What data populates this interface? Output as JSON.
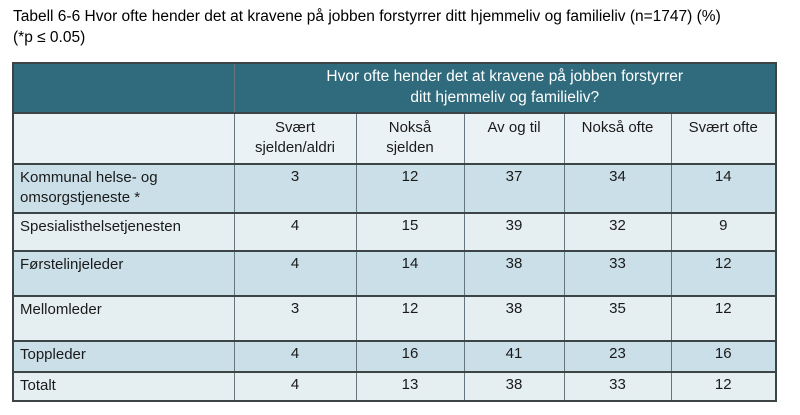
{
  "page": {
    "caption": "Tabell 6-6 Hvor ofte hender det at kravene på jobben forstyrrer ditt hjemmeliv og familieliv (n=1747) (%)\n(*p ≤ 0.05)"
  },
  "table": {
    "question": "Hvor ofte hender det at kravene på jobben forstyrrer\nditt hjemmeliv og familieliv?",
    "column_headers": [
      "Svært\nsjelden/aldri",
      "Nokså\nsjelden",
      "Av og til",
      "Nokså ofte",
      "Svært ofte"
    ],
    "rows": [
      {
        "label": "Kommunal helse- og omsorgstjeneste *",
        "values": [
          "3",
          "12",
          "37",
          "34",
          "14"
        ]
      },
      {
        "label": "Spesialisthelsetjenesten",
        "values": [
          "4",
          "15",
          "39",
          "32",
          "9"
        ]
      },
      {
        "label": "Førstelinjeleder",
        "values": [
          "4",
          "14",
          "38",
          "33",
          "12"
        ]
      },
      {
        "label": "Mellomleder",
        "values": [
          "3",
          "12",
          "38",
          "35",
          "12"
        ]
      },
      {
        "label": "Toppleder",
        "values": [
          "4",
          "16",
          "41",
          "23",
          "16"
        ]
      },
      {
        "label": "Totalt",
        "values": [
          "4",
          "13",
          "38",
          "33",
          "12"
        ]
      }
    ],
    "colors": {
      "question_header_bg": "#2f6b7c",
      "question_header_text": "#ffffff",
      "column_header_bg": "#ebf2f5",
      "row_alt_dark": "#cbdfe8",
      "row_alt_light": "#e5eff2",
      "grid_vertical": "#66767e",
      "grid_horizontal": "#3c4446"
    }
  }
}
